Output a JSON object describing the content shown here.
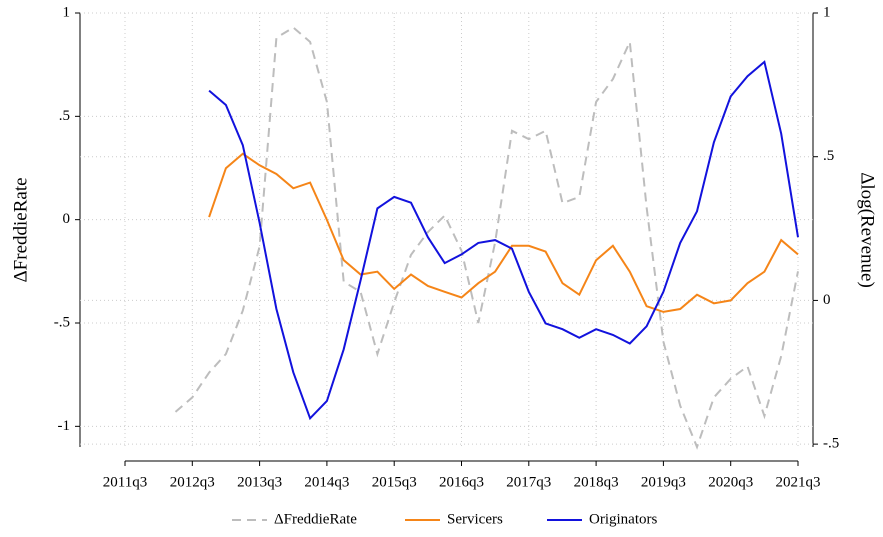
{
  "chart_data": {
    "type": "line",
    "categories": [
      "2011q3",
      null,
      null,
      null,
      "2012q3",
      null,
      null,
      null,
      "2013q3",
      null,
      null,
      null,
      "2014q3",
      null,
      null,
      null,
      "2015q3",
      null,
      null,
      null,
      "2016q3",
      null,
      null,
      null,
      "2017q3",
      null,
      null,
      null,
      "2018q3",
      null,
      null,
      null,
      "2019q3",
      null,
      null,
      null,
      "2020q3",
      null,
      null,
      null,
      "2021q3"
    ],
    "y_label": "ΔFreddieRate",
    "y2_label": "Δlog(Revenue)",
    "ylim": [
      -1.1,
      1
    ],
    "yticks": [
      {
        "value": 1,
        "label": "1"
      },
      {
        "value": 0.5,
        "label": ".5"
      },
      0,
      {
        "value": -0.5,
        "label": "-.5"
      },
      -1
    ],
    "y2lim": [
      -0.51,
      1
    ],
    "y2ticks": [
      1,
      {
        "value": 0.5,
        "label": ".5"
      },
      0,
      {
        "value": -0.5,
        "label": "-.5"
      }
    ],
    "grid": true,
    "legend": "bottom",
    "series": [
      {
        "name": "ΔFreddieRate",
        "color": "#bdbdbd",
        "dashed": true,
        "values": [
          null,
          null,
          null,
          -0.93,
          -0.86,
          -0.74,
          -0.65,
          -0.44,
          -0.13,
          0.88,
          0.93,
          0.86,
          0.57,
          -0.3,
          -0.35,
          -0.65,
          -0.4,
          -0.17,
          -0.06,
          0.02,
          -0.15,
          -0.5,
          -0.11,
          0.43,
          0.39,
          0.43,
          0.08,
          0.11,
          0.57,
          0.68,
          0.86,
          0.06,
          -0.59,
          -0.9,
          -1.1,
          -0.86,
          -0.77,
          -0.71,
          -0.95,
          -0.66,
          -0.25
        ]
      },
      {
        "name": "Servicers",
        "color": "#f58518",
        "axis": "y2",
        "values": [
          null,
          null,
          null,
          null,
          null,
          0.29,
          0.46,
          0.51,
          0.47,
          0.44,
          0.39,
          0.41,
          0.28,
          0.14,
          0.09,
          0.1,
          0.04,
          0.09,
          0.05,
          0.03,
          0.01,
          0.06,
          0.1,
          0.19,
          0.19,
          0.17,
          0.06,
          0.02,
          0.14,
          0.19,
          0.1,
          -0.02,
          -0.04,
          -0.03,
          0.02,
          -0.01,
          0,
          0.06,
          0.1,
          0.21,
          0.16
        ]
      },
      {
        "name": "Originators",
        "color": "#1212dd",
        "axis": "y2",
        "values": [
          null,
          null,
          null,
          null,
          null,
          0.73,
          0.68,
          0.54,
          0.27,
          -0.03,
          -0.25,
          -0.41,
          -0.35,
          -0.17,
          0.07,
          0.32,
          0.36,
          0.34,
          0.22,
          0.13,
          0.16,
          0.2,
          0.21,
          0.18,
          0.03,
          -0.08,
          -0.1,
          -0.13,
          -0.1,
          -0.12,
          -0.15,
          -0.09,
          0.03,
          0.2,
          0.31,
          0.55,
          0.71,
          0.78,
          0.83,
          0.58,
          0.22
        ]
      }
    ]
  }
}
